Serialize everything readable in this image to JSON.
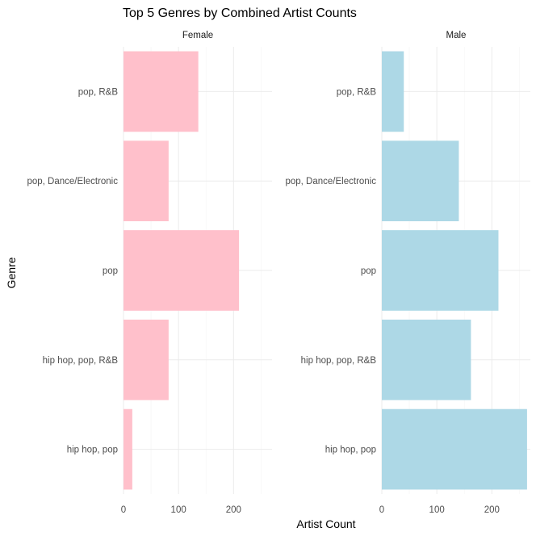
{
  "chart_data": {
    "type": "bar",
    "orientation": "horizontal",
    "title": "Top 5 Genres by Combined Artist Counts",
    "xlabel": "Artist Count",
    "ylabel": "Genre",
    "categories": [
      "pop, R&B",
      "pop, Dance/Electronic",
      "pop",
      "hip hop, pop, R&B",
      "hip hop, pop"
    ],
    "xlim": [
      0,
      270
    ],
    "x_ticks": [
      0,
      100,
      200
    ],
    "grid": true,
    "legend": "none",
    "facets": [
      {
        "name": "Female",
        "color": "#ffc0cb",
        "values": [
          136,
          82,
          210,
          82,
          16
        ]
      },
      {
        "name": "Male",
        "color": "#add8e6",
        "values": [
          40,
          140,
          212,
          162,
          264
        ]
      }
    ]
  }
}
